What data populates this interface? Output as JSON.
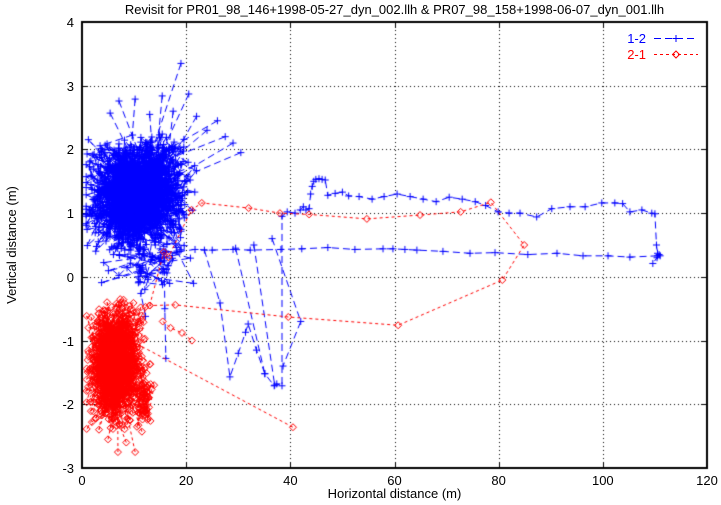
{
  "chart_data": {
    "type": "scatter",
    "title": "Revisit for PR01_98_146+1998-05-27_dyn_002.llh & PR07_98_158+1998-06-07_dyn_001.llh",
    "xlabel": "Horizontal distance (m)",
    "ylabel": "Vertical distance (m)",
    "xlim": [
      0,
      120
    ],
    "ylim": [
      -3,
      4
    ],
    "xticks": [
      0,
      20,
      40,
      60,
      80,
      100,
      120
    ],
    "yticks": [
      -3,
      -2,
      -1,
      0,
      1,
      2,
      3,
      4
    ],
    "grid": true,
    "background": "#ffffff",
    "axis_color": "#000000",
    "seed": 1337,
    "legend": {
      "position": "top-right",
      "items": [
        {
          "label": "1-2",
          "series": "1-2"
        },
        {
          "label": "2-1",
          "series": "2-1"
        }
      ]
    },
    "series": [
      {
        "name": "1-2",
        "color": "#0000ff",
        "marker": "plus",
        "dash": [
          7,
          4
        ],
        "clusters": [
          {
            "n": 1250,
            "cx": 11.0,
            "cy": 1.32,
            "sx": 4.3,
            "sy": 0.4,
            "xmin": 0.8,
            "xmax": 27.5,
            "ymin": 0.3,
            "ymax": 2.28
          },
          {
            "n": 55,
            "cx": 13.0,
            "cy": 0.15,
            "sx": 4.0,
            "sy": 0.25,
            "xmin": 3.5,
            "xmax": 22.0,
            "ymin": -0.2,
            "ymax": 0.5
          }
        ],
        "outliers": [
          [
            5.4,
            2.57
          ],
          [
            7.1,
            2.76
          ],
          [
            19.0,
            3.35
          ],
          [
            10.2,
            2.79
          ],
          [
            15.4,
            2.84
          ],
          [
            20.5,
            2.87
          ],
          [
            13.0,
            2.55
          ],
          [
            17.5,
            2.6
          ],
          [
            22.0,
            2.52
          ],
          [
            26.0,
            2.45
          ],
          [
            24.0,
            2.3
          ],
          [
            27.5,
            2.2
          ],
          [
            29.0,
            2.1
          ],
          [
            30.5,
            1.95
          ]
        ],
        "paths": [
          [
            [
              23.5,
              0.42
            ],
            [
              26.5,
              -0.41
            ],
            [
              28.4,
              -1.57
            ],
            [
              30.0,
              -1.2
            ],
            [
              31.4,
              -0.87
            ],
            [
              31.9,
              -0.74
            ],
            [
              33.5,
              -1.15
            ],
            [
              35.1,
              -1.52
            ],
            [
              36.9,
              -1.71
            ],
            [
              37.4,
              -1.68
            ],
            [
              38.4,
              -1.71
            ],
            [
              38.4,
              0.95
            ],
            [
              39.4,
              1.02
            ],
            [
              40.9,
              1.0
            ],
            [
              41.9,
              1.05
            ],
            [
              42.5,
              1.1
            ],
            [
              43.0,
              1.05
            ],
            [
              43.6,
              1.07
            ],
            [
              43.9,
              1.3
            ],
            [
              44.2,
              1.42
            ],
            [
              44.5,
              1.5
            ],
            [
              44.9,
              1.53
            ],
            [
              45.5,
              1.54
            ],
            [
              46.1,
              1.53
            ],
            [
              46.7,
              1.52
            ],
            [
              47.2,
              1.28
            ],
            [
              48.6,
              1.31
            ],
            [
              50.0,
              1.33
            ],
            [
              51.2,
              1.27
            ],
            [
              53.2,
              1.26
            ],
            [
              55.7,
              1.22
            ],
            [
              58.0,
              1.26
            ],
            [
              60.5,
              1.3
            ],
            [
              63.0,
              1.26
            ],
            [
              65.5,
              1.22
            ],
            [
              68.0,
              1.18
            ],
            [
              70.5,
              1.25
            ],
            [
              73.0,
              1.22
            ],
            [
              75.5,
              1.18
            ],
            [
              77.5,
              1.12
            ],
            [
              79.9,
              1.02
            ],
            [
              82.0,
              1.0
            ],
            [
              84.1,
              1.0
            ],
            [
              87.3,
              0.94
            ],
            [
              90.2,
              1.07
            ],
            [
              93.7,
              1.1
            ],
            [
              96.6,
              1.1
            ],
            [
              99.8,
              1.16
            ],
            [
              102.3,
              1.16
            ],
            [
              103.8,
              1.15
            ],
            [
              105.2,
              1.02
            ],
            [
              107.5,
              1.05
            ],
            [
              109.4,
              1.0
            ],
            [
              110.0,
              0.99
            ],
            [
              110.3,
              0.5
            ],
            [
              110.5,
              0.37
            ],
            [
              111.0,
              0.33
            ],
            [
              110.4,
              0.3
            ],
            [
              110.8,
              0.35
            ],
            [
              109.6,
              0.21
            ]
          ],
          [
            [
              110.5,
              0.33
            ],
            [
              105.2,
              0.31
            ],
            [
              101.0,
              0.33
            ],
            [
              96.2,
              0.33
            ],
            [
              91.2,
              0.37
            ],
            [
              85.6,
              0.35
            ],
            [
              79.3,
              0.38
            ],
            [
              74.5,
              0.37
            ],
            [
              69.3,
              0.4
            ],
            [
              64.3,
              0.42
            ],
            [
              62.0,
              0.43
            ],
            [
              59.7,
              0.44
            ],
            [
              57.8,
              0.44
            ],
            [
              52.4,
              0.43
            ],
            [
              47.2,
              0.46
            ],
            [
              42.2,
              0.44
            ],
            [
              38.2,
              0.43
            ],
            [
              32.3,
              0.42
            ],
            [
              29.0,
              0.43
            ],
            [
              25.0,
              0.42
            ],
            [
              21.7,
              0.43
            ],
            [
              18.8,
              0.4
            ]
          ],
          [
            [
              13.5,
              0.32
            ],
            [
              11.3,
              -0.26
            ],
            [
              12.2,
              -0.62
            ]
          ],
          [
            [
              15.8,
              0.3
            ],
            [
              15.9,
              -0.5
            ],
            [
              16.1,
              -1.28
            ]
          ],
          [
            [
              29.5,
              0.45
            ],
            [
              35.1,
              -1.52
            ]
          ],
          [
            [
              33.0,
              0.5
            ],
            [
              37.0,
              -1.7
            ]
          ],
          [
            [
              36.5,
              0.6
            ],
            [
              42.0,
              -0.7
            ],
            [
              38.6,
              -1.4
            ]
          ]
        ]
      },
      {
        "name": "2-1",
        "color": "#ff0000",
        "marker": "diamond",
        "dash": [
          3,
          3
        ],
        "clusters": [
          {
            "n": 900,
            "cx": 6.3,
            "cy": -1.33,
            "sx": 2.4,
            "sy": 0.45,
            "xmin": 0.9,
            "xmax": 16.5,
            "ymin": -2.45,
            "ymax": -0.33
          },
          {
            "n": 60,
            "cx": 12.0,
            "cy": -1.9,
            "sx": 0.9,
            "sy": 0.3,
            "xmin": 10.0,
            "xmax": 14.0,
            "ymin": -2.4,
            "ymax": -1.4
          }
        ],
        "outliers": [
          [
            1.9,
            -2.28
          ],
          [
            5.0,
            -2.55
          ],
          [
            6.9,
            -2.75
          ],
          [
            10.2,
            -2.75
          ],
          [
            11.5,
            -2.43
          ],
          [
            8.5,
            -2.6
          ]
        ],
        "paths": [
          [
            [
              13.0,
              -0.45
            ],
            [
              15.7,
              0.39
            ],
            [
              16.6,
              0.31
            ],
            [
              21.0,
              1.05
            ],
            [
              23.0,
              1.16
            ],
            [
              32.0,
              1.08
            ],
            [
              38.0,
              1.0
            ],
            [
              43.6,
              0.98
            ],
            [
              54.7,
              0.91
            ],
            [
              64.9,
              0.97
            ],
            [
              72.7,
              1.02
            ],
            [
              78.5,
              1.17
            ],
            [
              84.9,
              0.5
            ],
            [
              80.7,
              -0.05
            ],
            [
              60.7,
              -0.76
            ],
            [
              39.6,
              -0.63
            ],
            [
              17.9,
              -0.44
            ],
            [
              13.0,
              -0.45
            ]
          ],
          [
            [
              10.5,
              -1.05
            ],
            [
              40.5,
              -2.36
            ]
          ],
          [
            [
              15.5,
              -0.7
            ],
            [
              17.0,
              -0.8
            ],
            [
              19.2,
              -0.88
            ],
            [
              21.1,
              -1.0
            ]
          ]
        ]
      }
    ]
  }
}
